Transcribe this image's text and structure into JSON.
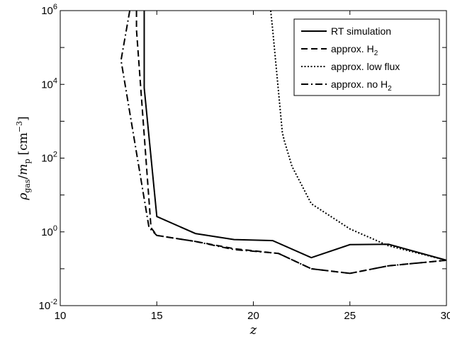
{
  "chart_data": {
    "type": "line",
    "xlabel": "z",
    "ylabel": {
      "rho": "ρ",
      "gas": "gas",
      "slash": "/",
      "m": "m",
      "p": "p",
      "unit": "[cm",
      "unit_exp": "−3",
      "close": "]"
    },
    "x_ticks": [
      "10",
      "15",
      "20",
      "25",
      "30"
    ],
    "y_ticks": [
      {
        "base": "10",
        "exp": "-2"
      },
      {
        "base": "10",
        "exp": "0"
      },
      {
        "base": "10",
        "exp": "2"
      },
      {
        "base": "10",
        "exp": "4"
      },
      {
        "base": "10",
        "exp": "6"
      }
    ],
    "xlim": [
      10,
      30
    ],
    "ylim": [
      0.01,
      1000000
    ],
    "yscale": "log",
    "grid": false,
    "legend_position": "top-right",
    "series": [
      {
        "name": "RT simulation",
        "dash": "solid",
        "x": [
          14.35,
          14.35,
          15.0,
          17.0,
          19.0,
          21.0,
          23.0,
          25.0,
          27.0,
          30.0
        ],
        "y": [
          1000000,
          8000,
          2.6,
          0.9,
          0.62,
          0.58,
          0.2,
          0.45,
          0.46,
          0.17
        ]
      },
      {
        "name": "approx. H2",
        "name_main": "approx. H",
        "name_sub": "2",
        "dash": "dashed",
        "x": [
          13.95,
          13.95,
          14.7,
          15.0,
          17.0,
          19.0,
          21.0,
          21.3,
          23.0,
          25.0,
          27.0,
          30.0
        ],
        "y": [
          1000000,
          300000,
          1.3,
          0.8,
          0.55,
          0.35,
          0.27,
          0.26,
          0.1,
          0.075,
          0.12,
          0.17
        ]
      },
      {
        "name": "approx. low flux",
        "dash": "dotted",
        "x": [
          20.9,
          21.0,
          21.5,
          21.6,
          22.0,
          23.0,
          25.0,
          27.0,
          30.0
        ],
        "y": [
          1000000,
          300000,
          500,
          300,
          60,
          5.8,
          1.2,
          0.42,
          0.17
        ]
      },
      {
        "name": "approx. no H2",
        "name_main": "approx. no H",
        "name_sub": "2",
        "dash": "dashdot",
        "x": [
          13.6,
          13.15,
          14.6,
          15.0,
          17.0,
          19.0,
          21.0,
          21.3,
          23.0,
          25.0,
          27.0,
          30.0
        ],
        "y": [
          1000000,
          45000,
          1.3,
          0.8,
          0.55,
          0.33,
          0.27,
          0.26,
          0.1,
          0.075,
          0.12,
          0.17
        ]
      }
    ]
  }
}
